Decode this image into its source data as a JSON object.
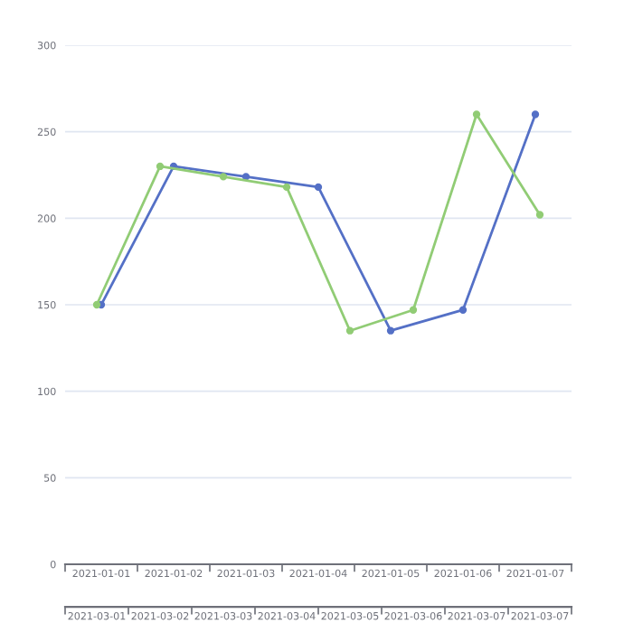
{
  "chart_data": [
    {
      "type": "line",
      "categories": [
        "2021-01-01",
        "2021-01-02",
        "2021-01-03",
        "2021-01-04",
        "2021-01-05",
        "2021-01-06",
        "2021-01-07"
      ],
      "series": [
        {
          "color": "#5470c6",
          "values": [
            150,
            230,
            224,
            218,
            135,
            147,
            260
          ]
        }
      ],
      "ylim": [
        0,
        300
      ],
      "yticks": [
        0,
        50,
        100,
        150,
        200,
        250,
        300
      ],
      "grid": "y",
      "marker": "circle",
      "line_style": "solid"
    },
    {
      "type": "line",
      "categories": [
        "2021-03-01",
        "2021-03-02",
        "2021-03-03",
        "2021-03-04",
        "2021-03-05",
        "2021-03-06",
        "2021-03-07",
        "2021-03-07"
      ],
      "series": [
        {
          "color": "#91cc75",
          "values": [
            150,
            230,
            224,
            218,
            135,
            147,
            260,
            202
          ]
        }
      ],
      "ylim": [
        0,
        300
      ],
      "yticks": [
        0,
        50,
        100,
        150,
        200,
        250,
        300
      ],
      "tick_labels": "x",
      "marker": "circle",
      "line_style": "solid"
    }
  ]
}
